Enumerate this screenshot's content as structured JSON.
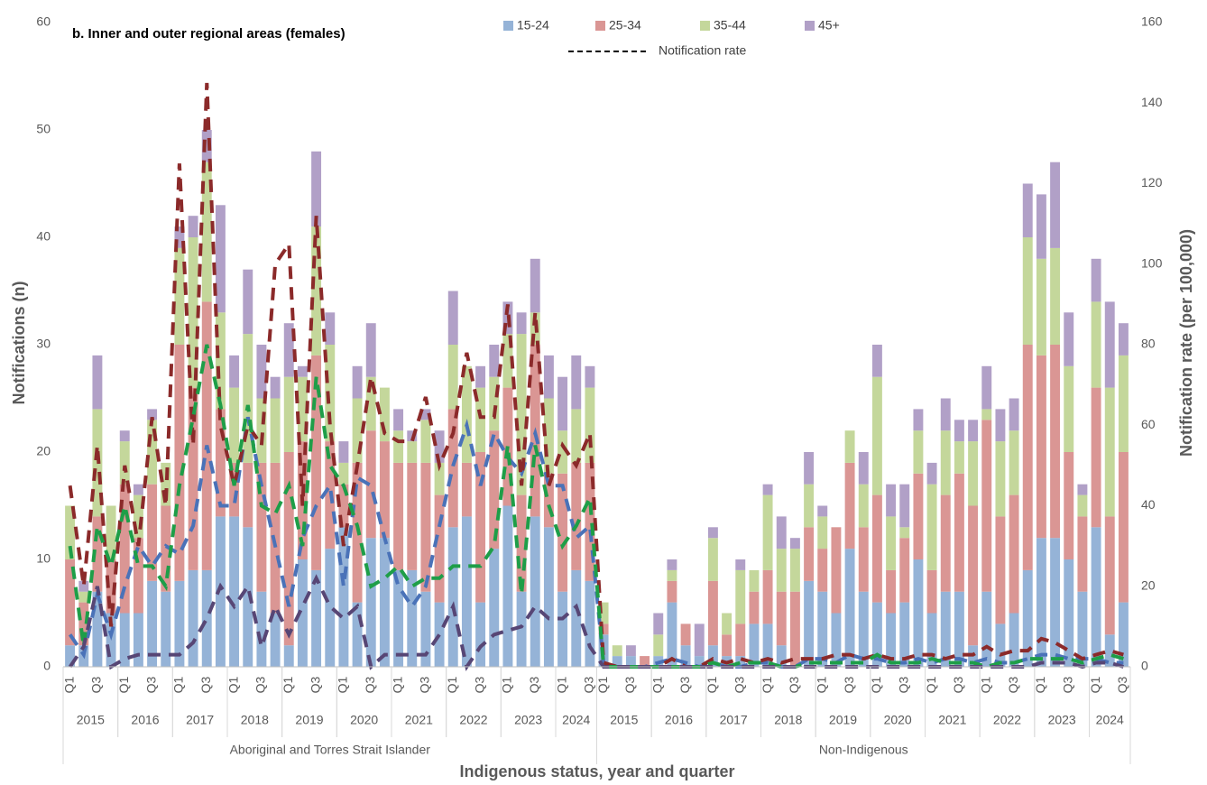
{
  "chart_data": {
    "type": "bar",
    "stacked": true,
    "title": "b. Inner and outer regional areas (females)",
    "y_label": "Notifications (n)",
    "y2_label": "Notification rate (per 100,000)",
    "x_label": "Indigenous status, year and quarter",
    "categories": [
      "Q1",
      null,
      "Q3",
      null,
      "Q1",
      null,
      "Q3",
      null,
      "Q1",
      null,
      "Q3",
      null,
      "Q1",
      null,
      "Q3",
      null,
      "Q1",
      null,
      "Q3",
      null,
      "Q1",
      null,
      "Q3",
      null,
      "Q1",
      null,
      "Q3",
      null,
      "Q1",
      null,
      "Q3",
      null,
      "Q1",
      null,
      "Q3",
      null,
      "Q1",
      null,
      "Q3",
      "Q1",
      null,
      "Q3",
      null,
      "Q1",
      null,
      "Q3",
      null,
      "Q1",
      null,
      "Q3",
      null,
      "Q1",
      null,
      "Q3",
      null,
      "Q1",
      null,
      "Q3",
      null,
      "Q1",
      null,
      "Q3",
      null,
      "Q1",
      null,
      "Q3",
      null,
      "Q1",
      null,
      "Q3",
      null,
      "Q1",
      null,
      "Q3",
      null,
      "Q1",
      null,
      "Q3"
    ],
    "groups": [
      {
        "name": "Aboriginal and Torres Strait Islander",
        "years": [
          "2015",
          "2016",
          "2017",
          "2018",
          "2019",
          "2020",
          "2021",
          "2022",
          "2023",
          "2024"
        ]
      },
      {
        "name": "Non-Indigenous",
        "years": [
          "2015",
          "2016",
          "2017",
          "2018",
          "2019",
          "2020",
          "2021",
          "2022",
          "2023",
          "2024"
        ]
      }
    ],
    "series": [
      {
        "name": "15-24",
        "color": "#95b3d7",
        "values": [
          2,
          2,
          7,
          5,
          5,
          5,
          8,
          7,
          8,
          9,
          9,
          14,
          14,
          13,
          7,
          5,
          2,
          10,
          9,
          11,
          13,
          6,
          12,
          12,
          9,
          9,
          7,
          6,
          13,
          14,
          6,
          11,
          15,
          7,
          14,
          13,
          7,
          9,
          8,
          3,
          1,
          1,
          0,
          1,
          6,
          2,
          1,
          2,
          1,
          1,
          4,
          4,
          2,
          0,
          8,
          7,
          5,
          11,
          7,
          6,
          5,
          6,
          10,
          5,
          7,
          7,
          2,
          7,
          4,
          5,
          9,
          12,
          12,
          10,
          7,
          13,
          3,
          6
        ]
      },
      {
        "name": "25-34",
        "color": "#da9694",
        "values": [
          8,
          4,
          7,
          5,
          12,
          7,
          9,
          8,
          22,
          17,
          25,
          10,
          5,
          6,
          12,
          14,
          18,
          11,
          20,
          10,
          4,
          13,
          10,
          9,
          10,
          10,
          12,
          10,
          11,
          5,
          14,
          11,
          11,
          9,
          16,
          5,
          11,
          10,
          11,
          1,
          0,
          0,
          1,
          0,
          2,
          2,
          0,
          6,
          2,
          3,
          3,
          5,
          5,
          7,
          5,
          4,
          8,
          8,
          6,
          10,
          4,
          6,
          8,
          4,
          9,
          11,
          13,
          16,
          10,
          11,
          21,
          17,
          18,
          10,
          7,
          13,
          11,
          14
        ]
      },
      {
        "name": "35-44",
        "color": "#c4d79b",
        "values": [
          5,
          1,
          10,
          5,
          4,
          4,
          6,
          4,
          9,
          14,
          13,
          9,
          7,
          12,
          6,
          6,
          7,
          6,
          12,
          9,
          2,
          6,
          5,
          5,
          3,
          2,
          4,
          3,
          6,
          9,
          6,
          5,
          5,
          15,
          3,
          7,
          4,
          5,
          7,
          2,
          1,
          0,
          0,
          2,
          1,
          0,
          0,
          4,
          2,
          5,
          2,
          7,
          4,
          4,
          4,
          3,
          0,
          3,
          4,
          11,
          5,
          1,
          4,
          8,
          6,
          3,
          6,
          1,
          7,
          6,
          10,
          9,
          9,
          8,
          2,
          8,
          12,
          9
        ]
      },
      {
        "name": "45+",
        "color": "#b1a0c7",
        "values": [
          0,
          1,
          5,
          0,
          1,
          1,
          1,
          0,
          2,
          2,
          3,
          10,
          3,
          6,
          5,
          2,
          5,
          1,
          7,
          3,
          2,
          3,
          5,
          0,
          2,
          1,
          1,
          3,
          5,
          0,
          2,
          3,
          3,
          2,
          5,
          4,
          5,
          5,
          2,
          0,
          0,
          1,
          0,
          2,
          1,
          0,
          3,
          1,
          0,
          1,
          0,
          1,
          3,
          1,
          3,
          1,
          0,
          0,
          3,
          3,
          3,
          4,
          2,
          2,
          3,
          2,
          2,
          4,
          3,
          3,
          5,
          6,
          8,
          5,
          1,
          4,
          8,
          3
        ]
      }
    ],
    "rate_legend": "Notification rate",
    "rate_series": [
      {
        "color": "#4a72b8",
        "axis": "y2",
        "values": [
          8,
          3,
          18,
          8,
          20,
          30,
          25,
          30,
          28,
          35,
          55,
          40,
          40,
          62,
          45,
          30,
          15,
          32,
          40,
          45,
          20,
          47,
          45,
          32,
          20,
          15,
          20,
          35,
          50,
          60,
          45,
          58,
          52,
          48,
          58,
          45,
          45,
          32,
          35,
          1,
          0,
          0,
          0,
          1,
          2,
          1,
          0,
          1,
          0,
          0,
          1,
          1,
          0,
          0,
          2,
          2,
          1,
          3,
          2,
          2,
          1,
          1,
          2,
          1,
          2,
          2,
          1,
          2,
          1,
          1,
          2,
          3,
          3,
          2,
          2,
          2,
          1,
          1
        ]
      },
      {
        "color": "#8b2a2a",
        "axis": "y2",
        "values": [
          45,
          20,
          55,
          10,
          50,
          30,
          62,
          40,
          125,
          55,
          145,
          60,
          45,
          60,
          55,
          100,
          105,
          40,
          112,
          60,
          30,
          50,
          72,
          58,
          56,
          56,
          67,
          50,
          58,
          78,
          62,
          62,
          90,
          45,
          88,
          45,
          55,
          50,
          58,
          1,
          0,
          0,
          0,
          0,
          2,
          0,
          0,
          2,
          1,
          2,
          1,
          2,
          1,
          2,
          2,
          2,
          3,
          3,
          2,
          3,
          2,
          2,
          3,
          3,
          2,
          3,
          3,
          5,
          3,
          4,
          4,
          7,
          6,
          4,
          2,
          3,
          4,
          3
        ]
      },
      {
        "color": "#1e9e48",
        "axis": "y2",
        "values": [
          30,
          5,
          35,
          25,
          40,
          25,
          25,
          20,
          45,
          62,
          80,
          65,
          45,
          65,
          40,
          38,
          45,
          30,
          72,
          50,
          45,
          35,
          20,
          22,
          25,
          20,
          22,
          22,
          25,
          25,
          25,
          30,
          55,
          18,
          55,
          40,
          30,
          35,
          42,
          0,
          0,
          0,
          0,
          0,
          0,
          0,
          0,
          1,
          0,
          1,
          1,
          1,
          0,
          0,
          1,
          1,
          1,
          1,
          1,
          3,
          1,
          1,
          1,
          2,
          1,
          1,
          1,
          0,
          1,
          1,
          2,
          2,
          2,
          2,
          1,
          2,
          3,
          2
        ]
      },
      {
        "color": "#574675",
        "axis": "y2",
        "values": [
          0,
          5,
          20,
          0,
          2,
          3,
          3,
          3,
          3,
          6,
          12,
          20,
          15,
          20,
          5,
          15,
          8,
          15,
          22,
          15,
          12,
          15,
          0,
          3,
          3,
          3,
          3,
          8,
          15,
          0,
          5,
          8,
          9,
          10,
          15,
          12,
          12,
          15,
          5,
          0,
          0,
          0,
          0,
          0,
          0,
          0,
          0,
          0,
          0,
          0,
          0,
          0,
          0,
          0,
          0,
          0,
          0,
          0,
          0,
          0,
          0,
          0,
          0,
          0,
          0,
          0,
          0,
          0,
          0,
          0,
          0,
          1,
          1,
          1,
          0,
          1,
          1,
          0
        ]
      }
    ],
    "ylim": [
      0,
      60
    ],
    "yticks": [
      0,
      10,
      20,
      30,
      40,
      50,
      60
    ],
    "y2lim": [
      0,
      160
    ],
    "y2ticks": [
      0,
      20,
      40,
      60,
      80,
      100,
      120,
      140,
      160
    ]
  }
}
